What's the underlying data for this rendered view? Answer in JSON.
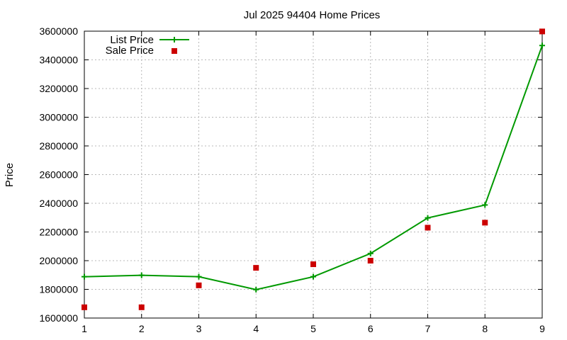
{
  "chart_data": {
    "type": "line",
    "title": "Jul 2025 94404 Home Prices",
    "xlabel": "",
    "ylabel": "Price",
    "x": [
      1,
      2,
      3,
      4,
      5,
      6,
      7,
      8,
      9
    ],
    "xlim": [
      1,
      9
    ],
    "ylim": [
      1600000,
      3600000
    ],
    "xticks": [
      "1",
      "2",
      "3",
      "4",
      "5",
      "6",
      "7",
      "8",
      "9"
    ],
    "yticks": [
      "1600000",
      "1800000",
      "2000000",
      "2200000",
      "2400000",
      "2600000",
      "2800000",
      "3000000",
      "3200000",
      "3400000",
      "3600000"
    ],
    "grid": true,
    "legend": "top-left",
    "series": [
      {
        "name": "List Price",
        "style": "line with plus markers",
        "color": "#009900",
        "values": [
          1888000,
          1898000,
          1888000,
          1798000,
          1888000,
          2050000,
          2298000,
          2388000,
          3500000
        ]
      },
      {
        "name": "Sale Price",
        "style": "square markers",
        "color": "#cc0000",
        "values": [
          1675000,
          1675000,
          1828000,
          1950000,
          1975000,
          2000000,
          2230000,
          2265000,
          3598000
        ]
      }
    ]
  }
}
